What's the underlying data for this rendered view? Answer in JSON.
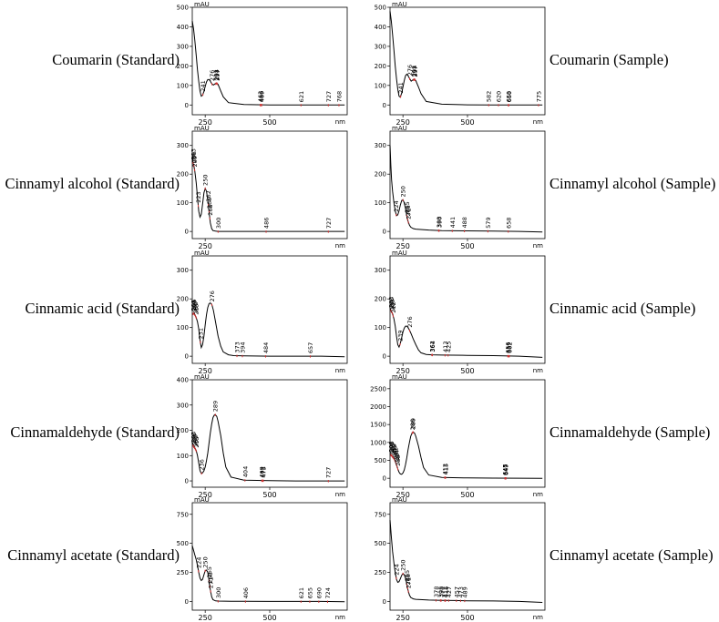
{
  "figure": {
    "background": "#ffffff",
    "line_color": "#000000",
    "peak_text_color": "#000000",
    "peak_marker_color": "#d03030"
  },
  "chart_data": [
    {
      "type": "line",
      "label": "Coumarin (Standard)",
      "y_unit": "mAU",
      "x_unit": "nm",
      "xlim": [
        200,
        800
      ],
      "ylim": [
        -50,
        500
      ],
      "y_ticks": [
        "500",
        "400",
        "300",
        "200",
        "100",
        "0"
      ],
      "x_ticks": [
        "250",
        "500"
      ],
      "series": [
        {
          "x": [
            200,
            205,
            210,
            215,
            220,
            225,
            230,
            235,
            240,
            245,
            250,
            255,
            260,
            265,
            270,
            276,
            282,
            288,
            295,
            300,
            310,
            320,
            340,
            400,
            500,
            600,
            700,
            790
          ],
          "y": [
            430,
            390,
            330,
            255,
            180,
            120,
            70,
            45,
            50,
            70,
            95,
            118,
            130,
            130,
            122,
            108,
            102,
            108,
            112,
            105,
            72,
            42,
            12,
            2,
            0,
            0,
            0,
            0
          ]
        }
      ],
      "peaks": [
        "241",
        "276",
        "291",
        "294",
        "297",
        "463",
        "466",
        "469",
        "621",
        "727",
        "768"
      ]
    },
    {
      "type": "line",
      "label": "Coumarin (Sample)",
      "y_unit": "mAU",
      "x_unit": "nm",
      "xlim": [
        200,
        800
      ],
      "ylim": [
        -50,
        500
      ],
      "y_ticks": [
        "500",
        "400",
        "300",
        "200",
        "100",
        "0"
      ],
      "x_ticks": [
        "250",
        "500"
      ],
      "series": [
        {
          "x": [
            200,
            205,
            210,
            215,
            220,
            225,
            230,
            235,
            240,
            245,
            250,
            255,
            260,
            265,
            270,
            276,
            282,
            288,
            295,
            300,
            310,
            320,
            340,
            400,
            500,
            600,
            700,
            790
          ],
          "y": [
            480,
            430,
            360,
            280,
            200,
            135,
            80,
            45,
            40,
            62,
            92,
            125,
            150,
            158,
            150,
            135,
            122,
            128,
            132,
            125,
            92,
            58,
            18,
            4,
            1,
            0,
            0,
            0
          ]
        }
      ],
      "peaks": [
        "241",
        "276",
        "291",
        "294",
        "297",
        "582",
        "620",
        "658",
        "660",
        "775"
      ]
    },
    {
      "type": "line",
      "label": "Cinnamyl alcohol (Standard)",
      "y_unit": "mAU",
      "x_unit": "nm",
      "xlim": [
        200,
        800
      ],
      "ylim": [
        -25,
        350
      ],
      "y_ticks": [
        "300",
        "200",
        "100",
        "0"
      ],
      "x_ticks": [
        "250"
      ],
      "series": [
        {
          "x": [
            200,
            203,
            206,
            210,
            215,
            220,
            225,
            230,
            235,
            240,
            245,
            250,
            255,
            260,
            265,
            270,
            275,
            280,
            290,
            300,
            350,
            500,
            790
          ],
          "y": [
            270,
            240,
            230,
            210,
            170,
            120,
            70,
            50,
            60,
            95,
            135,
            150,
            140,
            110,
            70,
            30,
            10,
            3,
            1,
            0,
            0,
            0,
            0
          ]
        }
      ],
      "peaks": [
        "203",
        "206",
        "209",
        "223",
        "250",
        "262",
        "265",
        "268",
        "300",
        "486",
        "727"
      ]
    },
    {
      "type": "line",
      "label": "Cinnamyl alcohol (Sample)",
      "y_unit": "mAU",
      "x_unit": "nm",
      "xlim": [
        200,
        800
      ],
      "ylim": [
        -25,
        350
      ],
      "y_ticks": [
        "300",
        "200",
        "100",
        "0"
      ],
      "x_ticks": [
        "250",
        "500"
      ],
      "series": [
        {
          "x": [
            200,
            203,
            206,
            210,
            215,
            220,
            225,
            230,
            235,
            240,
            245,
            250,
            255,
            260,
            265,
            270,
            275,
            280,
            290,
            300,
            350,
            400,
            500,
            600,
            700,
            790
          ],
          "y": [
            300,
            230,
            180,
            140,
            100,
            72,
            55,
            58,
            72,
            92,
            108,
            110,
            100,
            80,
            55,
            35,
            22,
            15,
            10,
            8,
            5,
            3,
            2,
            1,
            0,
            -2
          ]
        }
      ],
      "peaks": [
        "224",
        "250",
        "265",
        "268",
        "271",
        "388",
        "390",
        "441",
        "488",
        "579",
        "658"
      ]
    },
    {
      "type": "line",
      "label": "Cinnamic acid (Standard)",
      "y_unit": "mAU",
      "x_unit": "nm",
      "xlim": [
        200,
        800
      ],
      "ylim": [
        -25,
        350
      ],
      "y_ticks": [
        "300",
        "200",
        "100",
        "0"
      ],
      "x_ticks": [
        "250"
      ],
      "series": [
        {
          "x": [
            200,
            203,
            206,
            210,
            215,
            220,
            225,
            230,
            235,
            240,
            245,
            250,
            255,
            260,
            265,
            270,
            276,
            282,
            290,
            300,
            310,
            320,
            340,
            360,
            400,
            500,
            600,
            700,
            790
          ],
          "y": [
            150,
            148,
            150,
            145,
            135,
            120,
            95,
            55,
            30,
            40,
            70,
            110,
            145,
            170,
            183,
            186,
            180,
            160,
            120,
            70,
            35,
            15,
            5,
            2,
            1,
            0,
            0,
            0,
            -2
          ]
        }
      ],
      "peaks": [
        "203",
        "206",
        "209",
        "212",
        "215",
        "231",
        "276",
        "373",
        "394",
        "484",
        "657"
      ]
    },
    {
      "type": "line",
      "label": "Cinnamic acid (Sample)",
      "y_unit": "mAU",
      "x_unit": "nm",
      "xlim": [
        200,
        800
      ],
      "ylim": [
        -25,
        350
      ],
      "y_ticks": [
        "300",
        "200",
        "100",
        "0"
      ],
      "x_ticks": [
        "250",
        "500"
      ],
      "series": [
        {
          "x": [
            200,
            203,
            206,
            210,
            215,
            220,
            225,
            230,
            235,
            240,
            245,
            250,
            255,
            260,
            265,
            270,
            276,
            282,
            290,
            300,
            310,
            320,
            340,
            360,
            400,
            500,
            600,
            700,
            790
          ],
          "y": [
            165,
            160,
            155,
            148,
            130,
            105,
            70,
            40,
            32,
            45,
            65,
            85,
            98,
            105,
            105,
            100,
            90,
            78,
            60,
            40,
            22,
            12,
            6,
            5,
            4,
            3,
            2,
            0,
            -4
          ]
        }
      ],
      "peaks": [
        "203",
        "206",
        "209",
        "212",
        "239",
        "276",
        "362",
        "364",
        "413",
        "425",
        "656",
        "659",
        "662"
      ]
    },
    {
      "type": "line",
      "label": "Cinnamaldehyde (Standard)",
      "y_unit": "mAU",
      "x_unit": "nm",
      "xlim": [
        200,
        800
      ],
      "ylim": [
        -25,
        400
      ],
      "y_ticks": [
        "400",
        "300",
        "200",
        "100",
        "0"
      ],
      "x_ticks": [
        "250",
        "500"
      ],
      "series": [
        {
          "x": [
            200,
            203,
            206,
            210,
            215,
            220,
            225,
            230,
            235,
            240,
            245,
            250,
            255,
            260,
            265,
            270,
            275,
            280,
            285,
            289,
            295,
            300,
            310,
            320,
            330,
            350,
            400,
            500,
            600,
            700,
            790
          ],
          "y": [
            150,
            140,
            135,
            130,
            120,
            100,
            70,
            40,
            30,
            32,
            40,
            55,
            80,
            110,
            150,
            190,
            225,
            250,
            260,
            262,
            255,
            235,
            180,
            110,
            55,
            15,
            3,
            1,
            0,
            0,
            0
          ]
        }
      ],
      "peaks": [
        "203",
        "206",
        "209",
        "212",
        "215",
        "236",
        "289",
        "404",
        "469",
        "472",
        "475",
        "727"
      ]
    },
    {
      "type": "line",
      "label": "Cinnamaldehyde (Sample)",
      "y_unit": "mAU",
      "x_unit": "nm",
      "xlim": [
        200,
        800
      ],
      "ylim": [
        -250,
        2750
      ],
      "y_ticks": [
        "2500",
        "2000",
        "1500",
        "1000",
        "500",
        "0"
      ],
      "x_ticks": [
        "250",
        "500"
      ],
      "series": [
        {
          "x": [
            200,
            203,
            206,
            210,
            215,
            220,
            225,
            230,
            235,
            240,
            245,
            250,
            255,
            260,
            265,
            270,
            275,
            280,
            285,
            289,
            295,
            300,
            310,
            320,
            330,
            350,
            400,
            500,
            600,
            700,
            790
          ],
          "y": [
            700,
            650,
            640,
            600,
            560,
            480,
            380,
            260,
            170,
            120,
            110,
            150,
            230,
            380,
            570,
            800,
            1000,
            1170,
            1260,
            1290,
            1260,
            1170,
            900,
            580,
            300,
            90,
            25,
            10,
            5,
            2,
            0
          ]
        }
      ],
      "peaks": [
        "203",
        "206",
        "209",
        "212",
        "215",
        "218",
        "221",
        "224",
        "227",
        "230",
        "286",
        "289",
        "412",
        "415",
        "645",
        "647",
        "649"
      ]
    },
    {
      "type": "line",
      "label": "Cinnamyl acetate (Standard)",
      "y_unit": "mAU",
      "x_unit": "nm",
      "xlim": [
        200,
        800
      ],
      "ylim": [
        -75,
        850
      ],
      "y_ticks": [
        "750",
        "500",
        "250",
        "0"
      ],
      "x_ticks": [
        "250",
        "500"
      ],
      "series": [
        {
          "x": [
            200,
            205,
            210,
            215,
            220,
            225,
            230,
            235,
            240,
            245,
            250,
            255,
            260,
            265,
            270,
            275,
            280,
            290,
            300,
            350,
            400,
            500,
            600,
            700,
            790
          ],
          "y": [
            480,
            440,
            400,
            360,
            310,
            250,
            200,
            180,
            190,
            230,
            265,
            270,
            250,
            180,
            100,
            40,
            15,
            5,
            3,
            2,
            1,
            0,
            0,
            0,
            -3
          ]
        }
      ],
      "peaks": [
        "224",
        "250",
        "265",
        "268",
        "271",
        "300",
        "406",
        "621",
        "655",
        "690",
        "724"
      ]
    },
    {
      "type": "line",
      "label": "Cinnamyl acetate (Sample)",
      "y_unit": "mAU",
      "x_unit": "nm",
      "xlim": [
        200,
        800
      ],
      "ylim": [
        -75,
        850
      ],
      "y_ticks": [
        "750",
        "500",
        "250",
        "0"
      ],
      "x_ticks": [
        "250",
        "500"
      ],
      "series": [
        {
          "x": [
            200,
            205,
            210,
            215,
            220,
            225,
            230,
            235,
            240,
            245,
            250,
            255,
            260,
            265,
            270,
            275,
            280,
            290,
            300,
            350,
            400,
            450,
            500,
            600,
            700,
            790
          ],
          "y": [
            700,
            560,
            430,
            330,
            250,
            190,
            165,
            170,
            195,
            225,
            240,
            230,
            200,
            150,
            95,
            55,
            35,
            22,
            18,
            12,
            10,
            8,
            6,
            4,
            0,
            -8
          ]
        }
      ],
      "peaks": [
        "224",
        "250",
        "265",
        "268",
        "271",
        "378",
        "395",
        "398",
        "412",
        "415",
        "427",
        "457",
        "473",
        "489"
      ]
    }
  ]
}
